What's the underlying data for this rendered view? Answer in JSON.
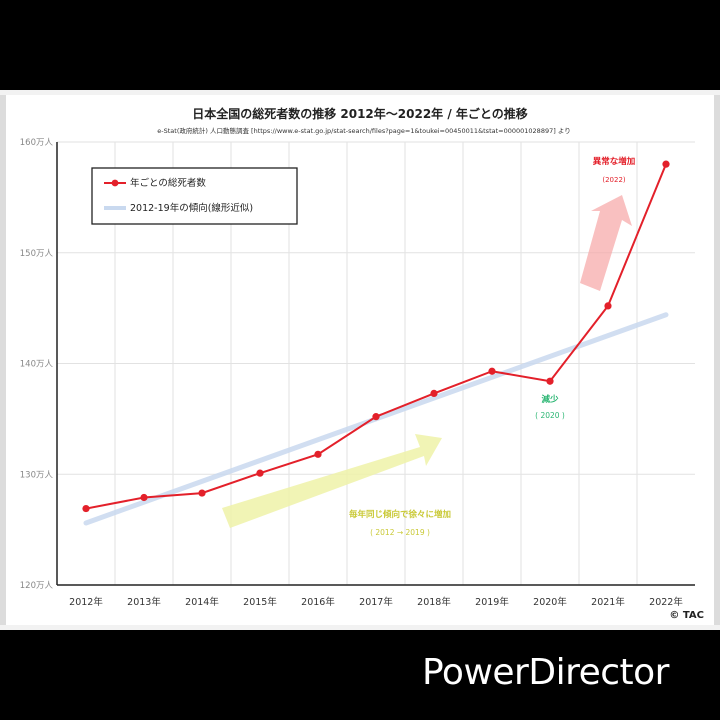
{
  "chart_data": {
    "type": "line",
    "title": "日本全国の総死者数の推移 2012年〜2022年 / 年ごとの推移",
    "subtitle": "e-Stat(政府統計) 人口動態調査 [https://www.e-stat.go.jp/stat-search/files?page=1&toukei=00450011&tstat=000001028897] より",
    "categories": [
      "2012年",
      "2013年",
      "2014年",
      "2015年",
      "2016年",
      "2017年",
      "2018年",
      "2019年",
      "2020年",
      "2021年",
      "2022年"
    ],
    "series": [
      {
        "name": "年ごとの総死者数",
        "color": "#e3202a",
        "values": [
          126.9,
          127.9,
          128.3,
          130.1,
          131.8,
          135.2,
          137.3,
          139.3,
          138.4,
          145.2,
          158.0
        ]
      },
      {
        "name": "2012-19年の傾向(線形近似)",
        "color": "#c9d9ef",
        "start": 125.6,
        "end": 144.4
      }
    ],
    "y_tick_labels": [
      "120万人",
      "130万人",
      "140万人",
      "150万人",
      "160万人"
    ],
    "ylim": [
      120,
      160
    ],
    "grid": true,
    "legend_position": "top-left",
    "annotations": {
      "increase": {
        "label": "異常な増加",
        "sub": "(2022)",
        "color": "#e3202a"
      },
      "decrease": {
        "label": "減少",
        "sub": "( 2020 )",
        "color": "#2bb673"
      },
      "trend": {
        "label": "毎年同じ傾向で徐々に増加",
        "sub": "( 2012 → 2019 )",
        "color": "#c9c936"
      }
    },
    "copyright": "© TAC"
  },
  "watermark": "PowerDirector"
}
